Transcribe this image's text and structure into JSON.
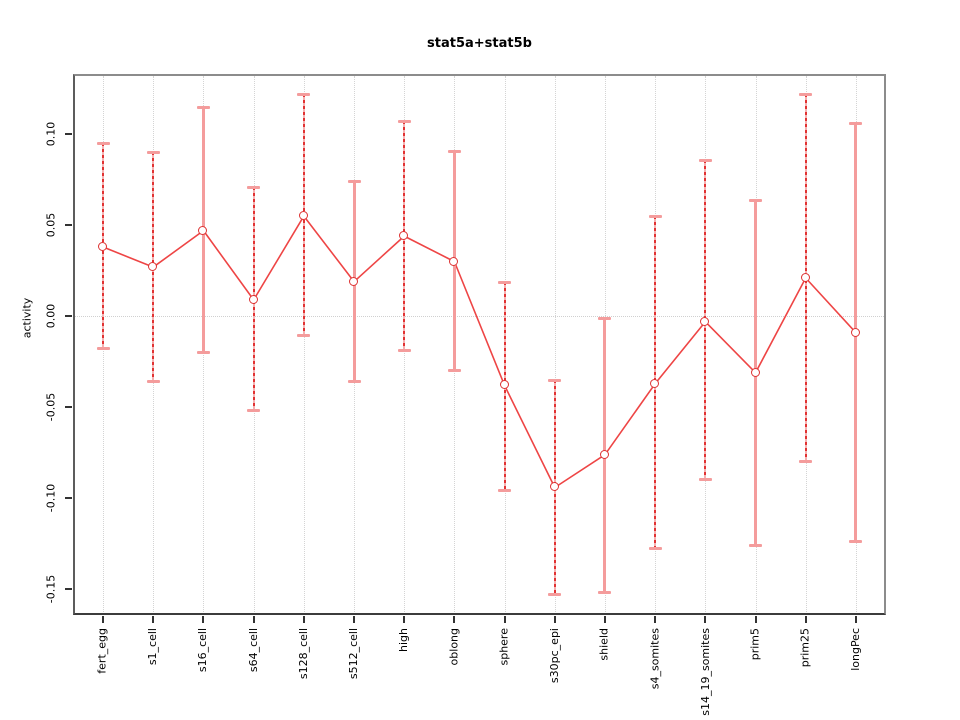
{
  "chart_data": {
    "type": "line",
    "title": "stat5a+stat5b",
    "xlabel": "",
    "ylabel": "activity",
    "categories": [
      "fert_egg",
      "s1_cell",
      "s16_cell",
      "s64_cell",
      "s128_cell",
      "s512_cell",
      "high",
      "oblong",
      "sphere",
      "s30pc_epi",
      "shield",
      "s4_somites",
      "s14_19_somites",
      "prim5",
      "prim25",
      "longPec"
    ],
    "series": [
      {
        "name": "stat5a+stat5b activity",
        "values": [
          0.038,
          0.027,
          0.047,
          0.009,
          0.055,
          0.019,
          0.044,
          0.03,
          -0.038,
          -0.094,
          -0.076,
          -0.037,
          -0.003,
          -0.031,
          0.021,
          -0.009
        ],
        "error_low": [
          -0.018,
          -0.036,
          -0.02,
          -0.052,
          -0.011,
          -0.036,
          -0.019,
          -0.03,
          -0.096,
          -0.153,
          -0.152,
          -0.128,
          -0.09,
          -0.126,
          -0.08,
          -0.124
        ],
        "error_high": [
          0.095,
          0.09,
          0.115,
          0.071,
          0.122,
          0.074,
          0.107,
          0.091,
          0.019,
          -0.035,
          -0.001,
          0.055,
          0.086,
          0.064,
          0.122,
          0.106
        ]
      }
    ],
    "error_bar_styles": [
      "dashed",
      "dashed",
      "solid",
      "dashed",
      "dashed",
      "solid",
      "dashed",
      "solid",
      "dashed",
      "dashed",
      "solid",
      "dashed",
      "dashed",
      "solid",
      "dashed",
      "solid"
    ],
    "marker": "open-circle",
    "ylim": [
      -0.164,
      0.133
    ],
    "xlim": [
      0.4,
      16.6
    ],
    "ytick_labels": [
      "0.10",
      "0.05",
      "0.00",
      "-0.05",
      "-0.10",
      "-0.15"
    ],
    "ytick_values": [
      0.1,
      0.05,
      0.0,
      -0.05,
      -0.1,
      -0.15
    ],
    "grid": {
      "vertical": "dotted-per-category",
      "horizontal": "dotted-zero-line-only"
    },
    "legend": "none",
    "colors": {
      "series_line": "#ee4545",
      "marker_stroke": "#dd3333",
      "error_bar_pink": "#f49c9c",
      "error_bar_dash_dark": "#e13333",
      "grid": "#d4d4d4",
      "box_border": "#8c8c8c",
      "axis": "#333333",
      "text": "#000000",
      "background": "#ffffff"
    }
  }
}
